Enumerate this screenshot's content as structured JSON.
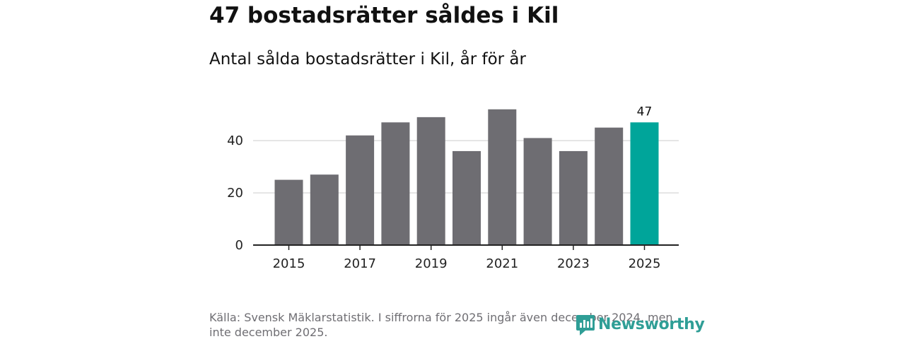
{
  "header": {
    "title": "47 bostadsrätter såldes i Kil",
    "subtitle": "Antal sålda bostadsrätter i Kil, år för år"
  },
  "footer": {
    "source": "Källa: Svensk Mäklarstatistik. I siffrorna för 2025 ingår även december 2024, men inte december 2025.",
    "brand": "Newsworthy"
  },
  "colors": {
    "bar": "#6e6d72",
    "highlight": "#00a59a",
    "grid": "#dddddd",
    "axis": "#222222",
    "brand": "#2f9e96"
  },
  "icons": {
    "logo": "bar-chart-speech-bubble-icon"
  },
  "chart_data": {
    "type": "bar",
    "title": "Antal sålda bostadsrätter i Kil, år för år",
    "xlabel": "",
    "ylabel": "",
    "categories": [
      "2015",
      "2016",
      "2017",
      "2018",
      "2019",
      "2020",
      "2021",
      "2022",
      "2023",
      "2024",
      "2025"
    ],
    "values": [
      25,
      27,
      42,
      47,
      49,
      36,
      52,
      41,
      36,
      45,
      47
    ],
    "highlight_index": 10,
    "x_tick_labels": [
      "2015",
      "2017",
      "2019",
      "2021",
      "2023",
      "2025"
    ],
    "y_ticks": [
      0,
      20,
      40
    ],
    "ylim": [
      0,
      56
    ],
    "grid": true,
    "data_labels": [
      {
        "category": "2025",
        "text": "47"
      }
    ]
  }
}
